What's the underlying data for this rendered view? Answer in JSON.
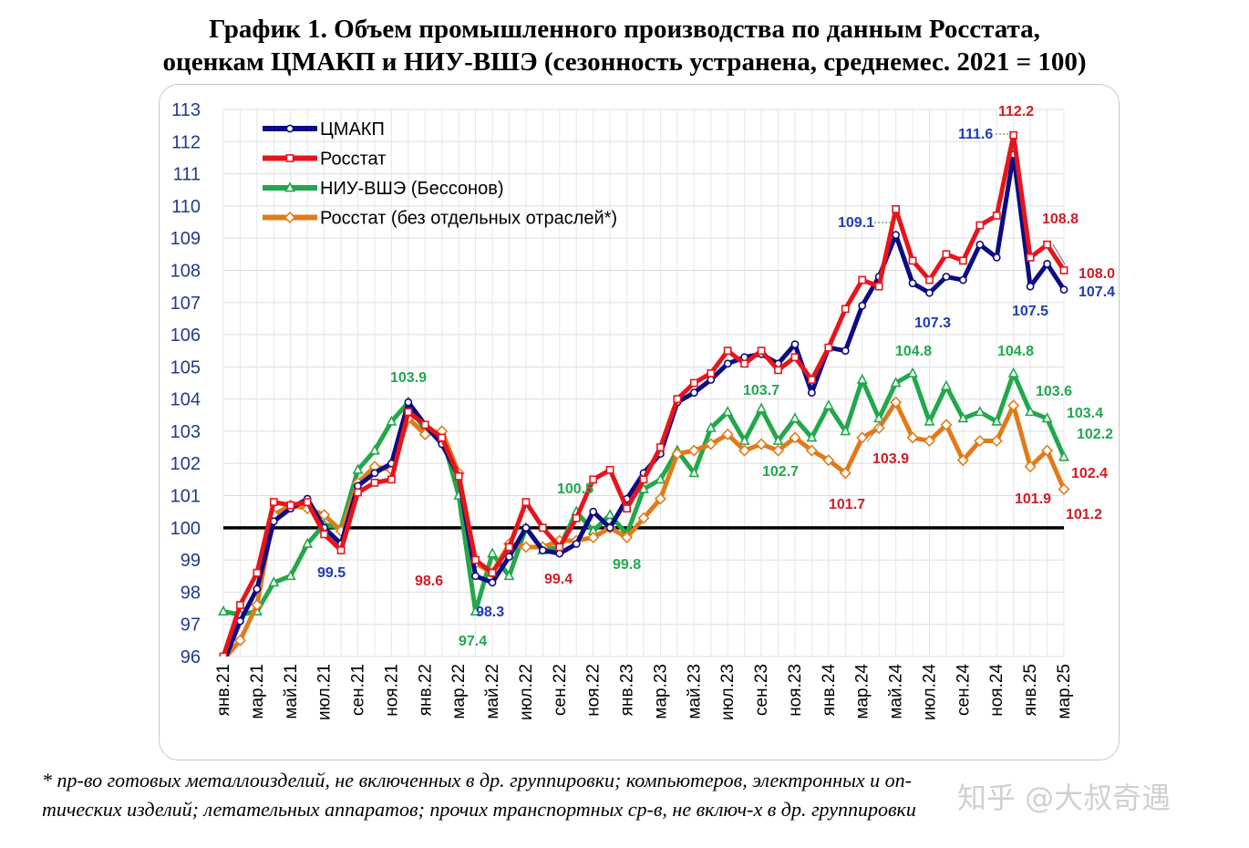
{
  "title": {
    "line1": "График 1. Объем промышленного производства по данным Росстата,",
    "line2": "оценкам ЦМАКП и НИУ-ВШЭ (сезонность устранена, среднемес. 2021 = 100)"
  },
  "footnote": {
    "line1": "* пр-во готовых металлоизделий, не включенных в др. группировки; компьютеров, электронных и оп-",
    "line2": "тических изделий; летательных аппаратов; прочих транспортных ср-в, не включ-х в др. группировки"
  },
  "watermark": "知乎 @大叔奇遇",
  "chart_data": {
    "type": "line",
    "title": "График 1. Объем промышленного производства по данным Росстата, оценкам ЦМАКП и НИУ-ВШЭ (сезонность устранена, среднемес. 2021 = 100)",
    "xlabel": "",
    "ylabel": "",
    "ylim": [
      96,
      113
    ],
    "yticks": [
      "96",
      "97",
      "98",
      "99",
      "100",
      "101",
      "102",
      "103",
      "104",
      "105",
      "106",
      "107",
      "108",
      "109",
      "110",
      "111",
      "112",
      "113"
    ],
    "reference_line": 100,
    "legend_position": "top-left",
    "categories": [
      "янв.21",
      "фев.21",
      "мар.21",
      "апр.21",
      "май.21",
      "июн.21",
      "июл.21",
      "авг.21",
      "сен.21",
      "окт.21",
      "ноя.21",
      "дек.21",
      "янв.22",
      "фев.22",
      "мар.22",
      "апр.22",
      "май.22",
      "июн.22",
      "июл.22",
      "авг.22",
      "сен.22",
      "окт.22",
      "ноя.22",
      "дек.22",
      "янв.23",
      "фев.23",
      "мар.23",
      "апр.23",
      "май.23",
      "июн.23",
      "июл.23",
      "авг.23",
      "сен.23",
      "окт.23",
      "ноя.23",
      "дек.23",
      "янв.24",
      "фев.24",
      "мар.24",
      "апр.24",
      "май.24",
      "июн.24",
      "июл.24",
      "авг.24",
      "сен.24",
      "окт.24",
      "ноя.24",
      "дек.24",
      "янв.25",
      "фев.25",
      "мар.25"
    ],
    "tick_labels": [
      "янв.21",
      "мар.21",
      "май.21",
      "июл.21",
      "сен.21",
      "ноя.21",
      "янв.22",
      "мар.22",
      "май.22",
      "июл.22",
      "сен.22",
      "ноя.22",
      "янв.23",
      "мар.23",
      "май.23",
      "июл.23",
      "сен.23",
      "ноя.23",
      "янв.24",
      "мар.24",
      "май.24",
      "июл.24",
      "сен.24",
      "ноя.24",
      "янв.25",
      "мар.25"
    ],
    "series": [
      {
        "name": "ЦМАКП",
        "color": "#0b0b84",
        "marker": "circle",
        "values": [
          95.8,
          97.1,
          98.1,
          100.2,
          100.6,
          100.9,
          100.0,
          99.5,
          101.3,
          101.7,
          102.0,
          103.9,
          103.2,
          102.6,
          101.6,
          98.5,
          98.3,
          99.1,
          100.0,
          99.3,
          99.2,
          99.5,
          100.5,
          100.0,
          100.9,
          101.7,
          102.3,
          103.9,
          104.2,
          104.6,
          105.1,
          105.3,
          105.4,
          105.1,
          105.7,
          104.2,
          105.6,
          105.5,
          106.9,
          107.8,
          109.1,
          107.6,
          107.3,
          107.8,
          107.7,
          108.8,
          108.4,
          111.6,
          107.5,
          108.2,
          107.4
        ]
      },
      {
        "name": "Росстат",
        "color": "#e8141b",
        "marker": "square",
        "values": [
          96.0,
          97.6,
          98.6,
          100.8,
          100.7,
          100.8,
          99.8,
          99.3,
          101.1,
          101.4,
          101.5,
          103.6,
          103.2,
          102.8,
          101.6,
          99.0,
          98.6,
          99.4,
          100.8,
          100.0,
          99.4,
          100.3,
          101.5,
          101.8,
          100.6,
          101.5,
          102.5,
          104.0,
          104.5,
          104.8,
          105.5,
          105.1,
          105.5,
          104.9,
          105.3,
          104.6,
          105.6,
          106.8,
          107.7,
          107.5,
          109.9,
          108.3,
          107.7,
          108.5,
          108.3,
          109.4,
          109.7,
          112.2,
          108.4,
          108.8,
          108.0
        ]
      },
      {
        "name": "НИУ-ВШЭ (Бессонов)",
        "color": "#21a84b",
        "marker": "triangle",
        "values": [
          97.4,
          97.3,
          97.4,
          98.3,
          98.5,
          99.5,
          100.1,
          100.0,
          101.8,
          102.4,
          103.3,
          103.9,
          103.0,
          102.9,
          101.0,
          97.4,
          99.2,
          98.5,
          100.0,
          99.3,
          99.4,
          100.5,
          99.9,
          100.4,
          99.8,
          101.2,
          101.5,
          102.4,
          101.7,
          103.1,
          103.6,
          102.7,
          103.7,
          102.7,
          103.4,
          102.8,
          103.8,
          103.0,
          104.6,
          103.4,
          104.5,
          104.8,
          103.3,
          104.4,
          103.4,
          103.6,
          103.3,
          104.8,
          103.6,
          103.4,
          102.2
        ]
      },
      {
        "name": "Росстат (без отдельных отраслей*)",
        "color": "#e07b1a",
        "marker": "diamond",
        "values": [
          95.9,
          96.5,
          97.6,
          100.4,
          100.7,
          100.6,
          100.4,
          99.9,
          101.4,
          101.9,
          101.8,
          103.4,
          102.9,
          103.0,
          101.7,
          98.9,
          98.6,
          99.5,
          99.4,
          99.4,
          99.6,
          99.6,
          99.7,
          100.0,
          99.7,
          100.3,
          100.9,
          102.3,
          102.4,
          102.6,
          102.9,
          102.4,
          102.6,
          102.4,
          102.8,
          102.4,
          102.1,
          101.7,
          102.8,
          103.1,
          103.9,
          102.8,
          102.7,
          103.2,
          102.1,
          102.7,
          102.7,
          103.8,
          101.9,
          102.4,
          101.2
        ]
      }
    ],
    "annotations": [
      {
        "text": "103.9",
        "series": "НИУ-ВШЭ (Бессонов)",
        "index": 11
      },
      {
        "text": "99.5",
        "series": "ЦМАКП",
        "index": 7
      },
      {
        "text": "98.6",
        "series": "Росстат (без отдельных отраслей*)",
        "index": 16
      },
      {
        "text": "98.3",
        "series": "ЦМАКП",
        "index": 16
      },
      {
        "text": "97.4",
        "series": "НИУ-ВШЭ (Бессонов)",
        "index": 15
      },
      {
        "text": "100.5",
        "series": "НИУ-ВШЭ (Бессонов)",
        "index": 21
      },
      {
        "text": "99.4",
        "series": "Росстат",
        "index": 20
      },
      {
        "text": "99.8",
        "series": "НИУ-ВШЭ (Бессонов)",
        "index": 24
      },
      {
        "text": "103.7",
        "series": "НИУ-ВШЭ (Бессонов)",
        "index": 32
      },
      {
        "text": "102.7",
        "series": "НИУ-ВШЭ (Бессонов)",
        "index": 33
      },
      {
        "text": "101.7",
        "series": "Росстат (без отдельных отраслей*)",
        "index": 37
      },
      {
        "text": "103.9",
        "series": "Росстат (без отдельных отраслей*)",
        "index": 40
      },
      {
        "text": "104.8",
        "series": "НИУ-ВШЭ (Бессонов)",
        "index": 41
      },
      {
        "text": "109.1",
        "series": "ЦМАКП",
        "index": 40
      },
      {
        "text": "107.3",
        "series": "ЦМАКП",
        "index": 42
      },
      {
        "text": "111.6",
        "series": "ЦМАКП",
        "index": 47
      },
      {
        "text": "112.2",
        "series": "Росстат",
        "index": 47
      },
      {
        "text": "104.8",
        "series": "НИУ-ВШЭ (Бессонов)",
        "index": 47
      },
      {
        "text": "107.5",
        "series": "ЦМАКП",
        "index": 48
      },
      {
        "text": "108.8",
        "series": "Росстат",
        "index": 49
      },
      {
        "text": "103.6",
        "series": "НИУ-ВШЭ (Бессонов)",
        "index": 48
      },
      {
        "text": "103.4",
        "series": "НИУ-ВШЭ (Бессонов)",
        "index": 49
      },
      {
        "text": "101.9",
        "series": "Росстат (без отдельных отраслей*)",
        "index": 48
      },
      {
        "text": "102.4",
        "series": "Росстат (без отдельных отраслей*)",
        "index": 49
      },
      {
        "text": "108.0",
        "series": "Росстат",
        "index": 50
      },
      {
        "text": "107.4",
        "series": "ЦМАКП",
        "index": 50
      },
      {
        "text": "102.2",
        "series": "НИУ-ВШЭ (Бессонов)",
        "index": 50
      },
      {
        "text": "101.2",
        "series": "Росстат (без отдельных отраслей*)",
        "index": 50
      }
    ]
  }
}
